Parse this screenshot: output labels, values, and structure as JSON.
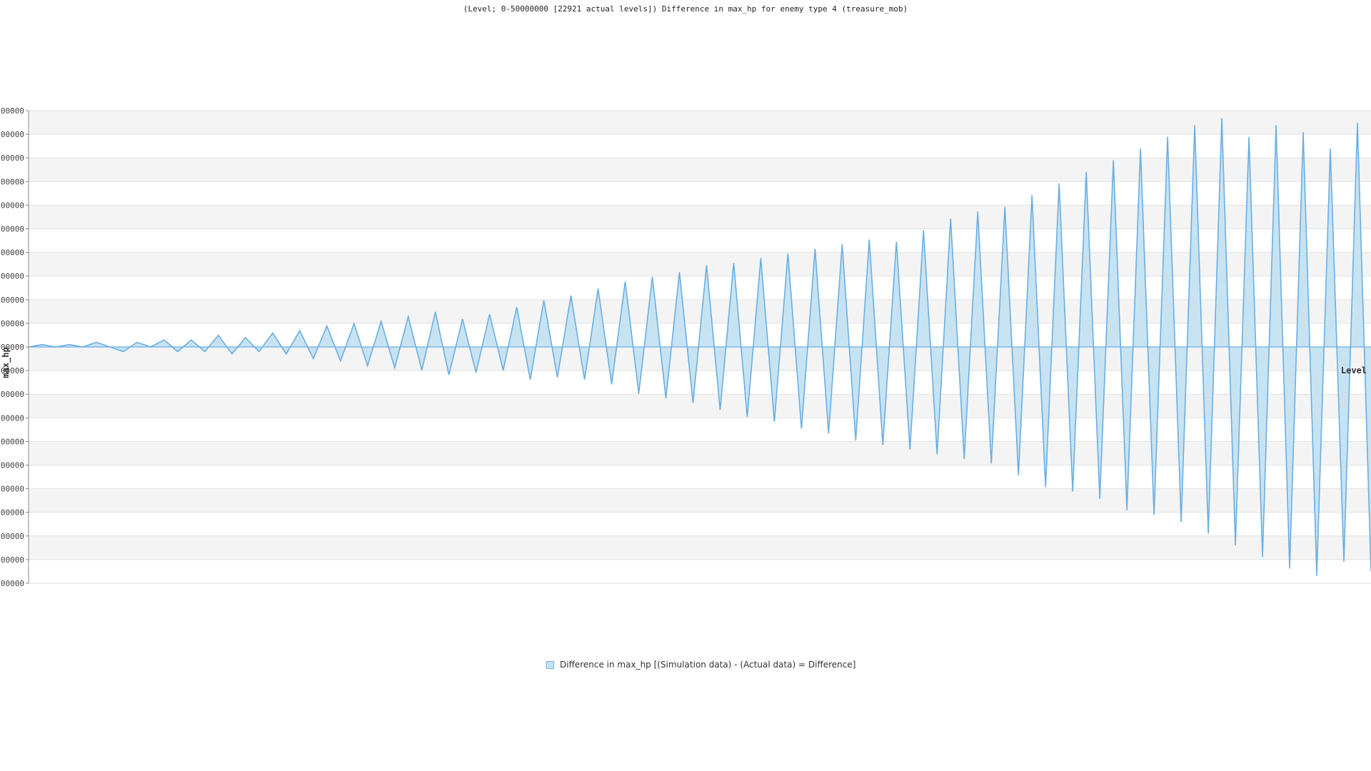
{
  "chart_data": {
    "type": "area",
    "title": "(Level; 0-50000000 [22921 actual levels]) Difference in max_hp for enemy type 4 (treasure_mob)",
    "xlabel": "Level",
    "ylabel": "max_hp",
    "x_range": [
      0,
      50000000
    ],
    "y_tick_labels_partial": [
      "00000",
      "00000",
      "00000",
      "00000",
      "00000",
      "00000",
      "00000",
      "00000",
      "00000",
      "00000",
      "00000",
      "00000",
      "00000",
      "00000",
      "00000",
      "00000",
      "00000",
      "00000",
      "00000",
      "00000",
      "00000"
    ],
    "grid": true,
    "legend_position": "bottom",
    "series": [
      {
        "name": "Difference in max_hp [(Simulation data) - (Actual data) = Difference]",
        "color": "#6aaee3",
        "fill": "#c7e3f2",
        "values_relative": [
          0,
          0.01,
          0,
          0.01,
          0,
          0.02,
          0,
          -0.02,
          0.02,
          0,
          0.03,
          -0.02,
          0.03,
          -0.02,
          0.05,
          -0.03,
          0.04,
          -0.02,
          0.06,
          -0.03,
          0.07,
          -0.05,
          0.09,
          -0.06,
          0.1,
          -0.08,
          0.11,
          -0.09,
          0.13,
          -0.1,
          0.15,
          -0.12,
          0.12,
          -0.11,
          0.14,
          -0.1,
          0.17,
          -0.14,
          0.2,
          -0.13,
          0.22,
          -0.14,
          0.25,
          -0.16,
          0.28,
          -0.2,
          0.3,
          -0.22,
          0.32,
          -0.24,
          0.35,
          -0.27,
          0.36,
          -0.3,
          0.38,
          -0.32,
          0.4,
          -0.35,
          0.42,
          -0.37,
          0.44,
          -0.4,
          0.46,
          -0.42,
          0.45,
          -0.44,
          0.5,
          -0.46,
          0.55,
          -0.48,
          0.58,
          -0.5,
          0.6,
          -0.55,
          0.65,
          -0.6,
          0.7,
          -0.62,
          0.75,
          -0.65,
          0.8,
          -0.7,
          0.85,
          -0.72,
          0.9,
          -0.75,
          0.95,
          -0.8,
          0.98,
          -0.85,
          0.9,
          -0.9,
          0.95,
          -0.95,
          0.92,
          -0.98,
          0.85,
          -0.92,
          0.96,
          -0.96
        ]
      }
    ]
  }
}
